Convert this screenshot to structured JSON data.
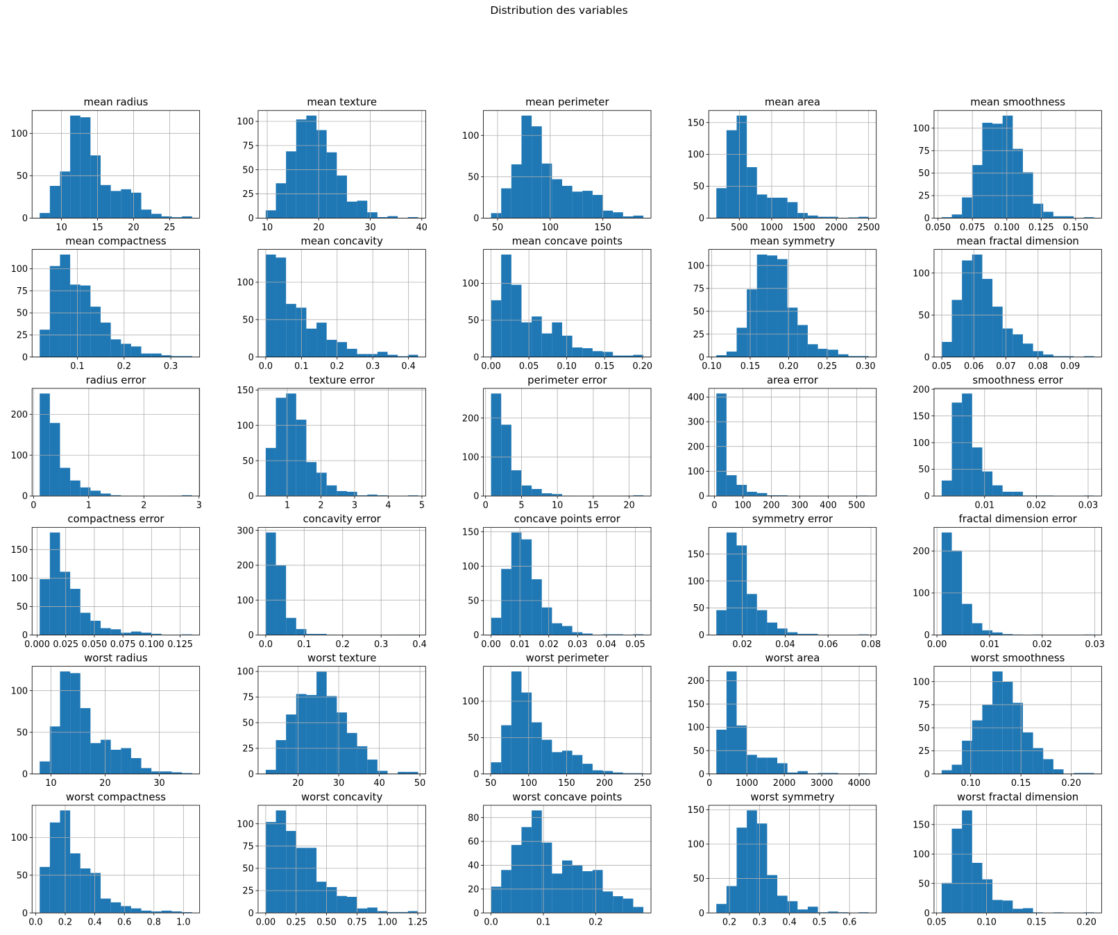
{
  "chart_data": {
    "type": "bar",
    "title": "Distribution des variables",
    "bar_color": "#1f77b4",
    "grid": true,
    "layout": "6 rows x 5 columns of histograms, 15 bins each",
    "subplots": [
      {
        "title": "mean radius",
        "range": [
          6.98,
          28.11
        ],
        "counts": [
          6,
          38,
          55,
          121,
          119,
          74,
          39,
          32,
          34,
          30,
          10,
          5,
          2,
          1,
          2
        ],
        "xticks": [
          "10",
          "15",
          "20",
          "25"
        ],
        "yticks": [
          "0",
          "50",
          "100"
        ]
      },
      {
        "title": "mean texture",
        "range": [
          9.71,
          39.28
        ],
        "counts": [
          8,
          36,
          69,
          102,
          106,
          91,
          68,
          44,
          17,
          18,
          6,
          1,
          2,
          0,
          1
        ],
        "xticks": [
          "10",
          "20",
          "30",
          "40"
        ],
        "yticks": [
          "0",
          "25",
          "50",
          "75",
          "100"
        ]
      },
      {
        "title": "mean perimeter",
        "range": [
          43.79,
          188.5
        ],
        "counts": [
          6,
          36,
          65,
          124,
          111,
          66,
          47,
          39,
          32,
          33,
          28,
          9,
          7,
          2,
          3
        ],
        "xticks": [
          "50",
          "100",
          "150"
        ],
        "yticks": [
          "0",
          "50",
          "100"
        ]
      },
      {
        "title": "mean area",
        "range": [
          143.5,
          2501
        ],
        "counts": [
          47,
          138,
          161,
          80,
          37,
          32,
          32,
          25,
          8,
          4,
          2,
          2,
          0,
          1,
          2
        ],
        "xticks": [
          "500",
          "1000",
          "1500",
          "2000",
          "2500"
        ],
        "yticks": [
          "0",
          "50",
          "100",
          "150"
        ]
      },
      {
        "title": "mean smoothness",
        "range": [
          0.05263,
          0.1634
        ],
        "counts": [
          1,
          4,
          23,
          59,
          106,
          105,
          114,
          77,
          51,
          16,
          7,
          2,
          2,
          0,
          1
        ],
        "xticks": [
          "0.050",
          "0.075",
          "0.100",
          "0.125",
          "0.150"
        ],
        "yticks": [
          "0",
          "25",
          "50",
          "75",
          "100"
        ]
      },
      {
        "title": "mean compactness",
        "range": [
          0.01938,
          0.3454
        ],
        "counts": [
          31,
          103,
          116,
          82,
          81,
          57,
          39,
          20,
          15,
          12,
          4,
          4,
          2,
          1,
          1
        ],
        "xticks": [
          "0.1",
          "0.2",
          "0.3"
        ],
        "yticks": [
          "0",
          "25",
          "50",
          "75",
          "100"
        ]
      },
      {
        "title": "mean concavity",
        "range": [
          0,
          0.4268
        ],
        "counts": [
          137,
          133,
          71,
          66,
          38,
          46,
          23,
          20,
          11,
          4,
          4,
          7,
          3,
          1,
          3
        ],
        "xticks": [
          "0.0",
          "0.1",
          "0.2",
          "0.3",
          "0.4"
        ],
        "yticks": [
          "0",
          "50",
          "100"
        ]
      },
      {
        "title": "mean concave points",
        "range": [
          0,
          0.2012
        ],
        "counts": [
          77,
          139,
          98,
          47,
          55,
          32,
          47,
          29,
          13,
          12,
          8,
          7,
          2,
          2,
          3
        ],
        "xticks": [
          "0.00",
          "0.05",
          "0.10",
          "0.15",
          "0.20"
        ],
        "yticks": [
          "0",
          "50",
          "100"
        ]
      },
      {
        "title": "mean symmetry",
        "range": [
          0.106,
          0.304
        ],
        "counts": [
          2,
          6,
          32,
          74,
          112,
          111,
          107,
          54,
          35,
          14,
          9,
          8,
          3,
          1,
          1
        ],
        "xticks": [
          "0.10",
          "0.15",
          "0.20",
          "0.25",
          "0.30"
        ],
        "yticks": [
          "0",
          "25",
          "50",
          "75",
          "100"
        ]
      },
      {
        "title": "mean fractal dimension",
        "range": [
          0.04996,
          0.09744
        ],
        "counts": [
          18,
          68,
          115,
          122,
          93,
          60,
          34,
          27,
          16,
          7,
          3,
          1,
          1,
          0,
          1
        ],
        "xticks": [
          "0.05",
          "0.06",
          "0.07",
          "0.08",
          "0.09"
        ],
        "yticks": [
          "0",
          "50",
          "100"
        ]
      },
      {
        "title": "radius error",
        "range": [
          0.1115,
          2.873
        ],
        "counts": [
          251,
          179,
          69,
          38,
          21,
          13,
          6,
          2,
          0,
          0,
          0,
          0,
          0,
          1,
          2
        ],
        "xticks": [
          "0",
          "1",
          "2",
          "3"
        ],
        "yticks": [
          "0",
          "100",
          "200"
        ]
      },
      {
        "title": "texture error",
        "range": [
          0.3602,
          4.885
        ],
        "counts": [
          68,
          139,
          145,
          108,
          48,
          33,
          15,
          7,
          6,
          1,
          2,
          1,
          0,
          0,
          1
        ],
        "xticks": [
          "1",
          "2",
          "3",
          "4",
          "5"
        ],
        "yticks": [
          "0",
          "50",
          "100",
          "150"
        ]
      },
      {
        "title": "perimeter error",
        "range": [
          0.757,
          21.98
        ],
        "counts": [
          263,
          183,
          66,
          27,
          18,
          7,
          5,
          1,
          0,
          0,
          0,
          0,
          0,
          1,
          2
        ],
        "xticks": [
          "0",
          "5",
          "10",
          "15",
          "20"
        ],
        "yticks": [
          "0",
          "100",
          "200"
        ]
      },
      {
        "title": "area error",
        "range": [
          6.802,
          542.2
        ],
        "counts": [
          414,
          84,
          45,
          17,
          12,
          3,
          3,
          0,
          0,
          0,
          0,
          0,
          0,
          0,
          2
        ],
        "xticks": [
          "0",
          "100",
          "200",
          "300",
          "400",
          "500"
        ],
        "yticks": [
          "0",
          "100",
          "200",
          "300",
          "400"
        ]
      },
      {
        "title": "smoothness error",
        "range": [
          0.001713,
          0.03113
        ],
        "counts": [
          29,
          175,
          192,
          91,
          46,
          20,
          8,
          8,
          1,
          1,
          1,
          0,
          0,
          0,
          1
        ],
        "xticks": [
          "0.01",
          "0.02",
          "0.03"
        ],
        "yticks": [
          "0",
          "50",
          "100",
          "150",
          "200"
        ]
      },
      {
        "title": "compactness error",
        "range": [
          0.002252,
          0.1354
        ],
        "counts": [
          98,
          180,
          111,
          81,
          39,
          25,
          12,
          10,
          4,
          6,
          4,
          2,
          0,
          0,
          1
        ],
        "xticks": [
          "0.000",
          "0.025",
          "0.050",
          "0.075",
          "0.100",
          "0.125"
        ],
        "yticks": [
          "0",
          "50",
          "100",
          "150"
        ]
      },
      {
        "title": "concavity error",
        "range": [
          0,
          0.396
        ],
        "counts": [
          294,
          200,
          49,
          17,
          3,
          3,
          1,
          0,
          0,
          0,
          0,
          0,
          0,
          1,
          1
        ],
        "xticks": [
          "0.0",
          "0.1",
          "0.2",
          "0.3",
          "0.4"
        ],
        "yticks": [
          "0",
          "100",
          "200",
          "300"
        ]
      },
      {
        "title": "concave points error",
        "range": [
          0,
          0.05279
        ],
        "counts": [
          25,
          96,
          149,
          139,
          81,
          40,
          17,
          13,
          4,
          2,
          0,
          1,
          1,
          0,
          1
        ],
        "xticks": [
          "0.00",
          "0.01",
          "0.02",
          "0.03",
          "0.04",
          "0.05"
        ],
        "yticks": [
          "0",
          "50",
          "100",
          "150"
        ]
      },
      {
        "title": "symmetry error",
        "range": [
          0.007882,
          0.07895
        ],
        "counts": [
          46,
          190,
          166,
          76,
          46,
          23,
          12,
          5,
          2,
          2,
          0,
          0,
          0,
          0,
          1
        ],
        "xticks": [
          "0.02",
          "0.04",
          "0.06",
          "0.08"
        ],
        "yticks": [
          "0",
          "50",
          "100",
          "150"
        ]
      },
      {
        "title": "fractal dimension error",
        "range": [
          0.0008948,
          0.02984
        ],
        "counts": [
          244,
          201,
          74,
          28,
          11,
          6,
          2,
          1,
          0,
          1,
          0,
          0,
          0,
          0,
          1
        ],
        "xticks": [
          "0.00",
          "0.01",
          "0.02",
          "0.03"
        ],
        "yticks": [
          "0",
          "100",
          "200"
        ]
      },
      {
        "title": "worst radius",
        "range": [
          7.93,
          36.04
        ],
        "counts": [
          15,
          57,
          123,
          121,
          79,
          37,
          41,
          29,
          31,
          19,
          7,
          3,
          3,
          2,
          1
        ],
        "xticks": [
          "10",
          "20",
          "30"
        ],
        "yticks": [
          "0",
          "50",
          "100"
        ]
      },
      {
        "title": "worst texture",
        "range": [
          12.02,
          49.54
        ],
        "counts": [
          4,
          33,
          58,
          78,
          77,
          100,
          76,
          60,
          40,
          27,
          14,
          3,
          0,
          2,
          2
        ],
        "xticks": [
          "20",
          "30",
          "40",
          "50"
        ],
        "yticks": [
          "0",
          "25",
          "50",
          "75",
          "100"
        ]
      },
      {
        "title": "worst perimeter",
        "range": [
          50.41,
          251.2
        ],
        "counts": [
          16,
          67,
          141,
          112,
          71,
          47,
          30,
          32,
          26,
          14,
          5,
          4,
          2,
          1,
          1
        ],
        "xticks": [
          "50",
          "100",
          "150",
          "200",
          "250"
        ],
        "yticks": [
          "0",
          "50",
          "100"
        ]
      },
      {
        "title": "worst area",
        "range": [
          185.2,
          4254
        ],
        "counts": [
          95,
          220,
          104,
          41,
          35,
          35,
          23,
          3,
          6,
          1,
          2,
          2,
          0,
          0,
          1
        ],
        "xticks": [
          "0",
          "1000",
          "2000",
          "3000",
          "4000"
        ],
        "yticks": [
          "0",
          "50",
          "100",
          "150",
          "200"
        ]
      },
      {
        "title": "worst smoothness",
        "range": [
          0.07117,
          0.2226
        ],
        "counts": [
          4,
          10,
          36,
          58,
          75,
          111,
          100,
          77,
          45,
          28,
          16,
          5,
          0,
          1,
          1
        ],
        "xticks": [
          "0.10",
          "0.15",
          "0.20"
        ],
        "yticks": [
          "0",
          "25",
          "50",
          "75",
          "100"
        ]
      },
      {
        "title": "worst compactness",
        "range": [
          0.02729,
          1.058
        ],
        "counts": [
          61,
          120,
          136,
          79,
          59,
          53,
          19,
          14,
          9,
          6,
          3,
          2,
          3,
          2,
          1
        ],
        "xticks": [
          "0.0",
          "0.2",
          "0.4",
          "0.6",
          "0.8",
          "1.0"
        ],
        "yticks": [
          "0",
          "50",
          "100"
        ]
      },
      {
        "title": "worst concavity",
        "range": [
          0,
          1.252
        ],
        "counts": [
          102,
          115,
          92,
          73,
          73,
          35,
          29,
          19,
          18,
          5,
          6,
          2,
          1,
          1,
          2
        ],
        "xticks": [
          "0.00",
          "0.25",
          "0.50",
          "0.75",
          "1.00",
          "1.25"
        ],
        "yticks": [
          "0",
          "25",
          "50",
          "75",
          "100"
        ]
      },
      {
        "title": "worst concave points",
        "range": [
          0,
          0.291
        ],
        "counts": [
          22,
          36,
          57,
          72,
          86,
          59,
          33,
          44,
          40,
          35,
          36,
          18,
          14,
          12,
          5
        ],
        "xticks": [
          "0.0",
          "0.1",
          "0.2"
        ],
        "yticks": [
          "0",
          "20",
          "40",
          "60",
          "80"
        ]
      },
      {
        "title": "worst symmetry",
        "range": [
          0.1565,
          0.6638
        ],
        "counts": [
          13,
          39,
          124,
          149,
          130,
          55,
          25,
          17,
          5,
          9,
          1,
          2,
          1,
          0,
          1
        ],
        "xticks": [
          "0.2",
          "0.3",
          "0.4",
          "0.5",
          "0.6"
        ],
        "yticks": [
          "0",
          "50",
          "100",
          "150"
        ]
      },
      {
        "title": "worst fractal dimension",
        "range": [
          0.05504,
          0.2075
        ],
        "counts": [
          51,
          143,
          174,
          85,
          57,
          22,
          21,
          7,
          8,
          1,
          0,
          1,
          0,
          0,
          1
        ],
        "xticks": [
          "0.05",
          "0.10",
          "0.15",
          "0.20"
        ],
        "yticks": [
          "0",
          "50",
          "100",
          "150"
        ]
      }
    ]
  }
}
